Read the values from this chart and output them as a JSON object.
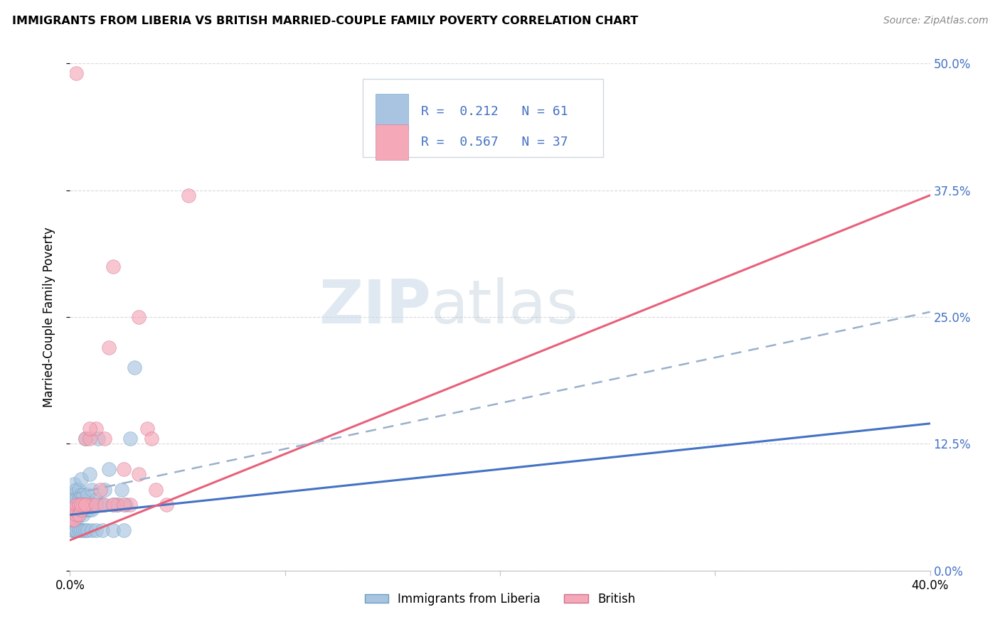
{
  "title": "IMMIGRANTS FROM LIBERIA VS BRITISH MARRIED-COUPLE FAMILY POVERTY CORRELATION CHART",
  "source": "Source: ZipAtlas.com",
  "ylabel": "Married-Couple Family Poverty",
  "legend_label1": "Immigrants from Liberia",
  "legend_label2": "British",
  "r1": 0.212,
  "n1": 61,
  "r2": 0.567,
  "n2": 37,
  "xlim": [
    0.0,
    0.4
  ],
  "ylim": [
    0.0,
    0.5
  ],
  "xticks": [
    0.0,
    0.1,
    0.2,
    0.3,
    0.4
  ],
  "yticks": [
    0.0,
    0.125,
    0.25,
    0.375,
    0.5
  ],
  "ytick_labels_right": [
    "0.0%",
    "12.5%",
    "25.0%",
    "37.5%",
    "50.0%"
  ],
  "xtick_labels": [
    "0.0%",
    "",
    "",
    "",
    "40.0%"
  ],
  "color_blue": "#a8c4e0",
  "color_pink": "#f4a8b8",
  "line_blue": "#4472c4",
  "line_pink": "#e8607a",
  "line_dash": "#9ab0cc",
  "watermark_zip": "ZIP",
  "watermark_atlas": "atlas",
  "blue_x": [
    0.001,
    0.001,
    0.001,
    0.002,
    0.002,
    0.002,
    0.002,
    0.002,
    0.003,
    0.003,
    0.003,
    0.003,
    0.003,
    0.003,
    0.004,
    0.004,
    0.004,
    0.004,
    0.005,
    0.005,
    0.005,
    0.005,
    0.006,
    0.006,
    0.006,
    0.007,
    0.007,
    0.008,
    0.008,
    0.009,
    0.009,
    0.01,
    0.01,
    0.011,
    0.012,
    0.013,
    0.014,
    0.015,
    0.016,
    0.018,
    0.02,
    0.022,
    0.024,
    0.026,
    0.028,
    0.001,
    0.002,
    0.002,
    0.003,
    0.003,
    0.004,
    0.005,
    0.006,
    0.007,
    0.008,
    0.01,
    0.012,
    0.015,
    0.02,
    0.025,
    0.03
  ],
  "blue_y": [
    0.055,
    0.065,
    0.075,
    0.055,
    0.06,
    0.065,
    0.075,
    0.085,
    0.05,
    0.055,
    0.06,
    0.065,
    0.07,
    0.08,
    0.055,
    0.06,
    0.07,
    0.08,
    0.06,
    0.065,
    0.075,
    0.09,
    0.055,
    0.065,
    0.075,
    0.06,
    0.13,
    0.06,
    0.075,
    0.06,
    0.095,
    0.06,
    0.08,
    0.065,
    0.07,
    0.13,
    0.065,
    0.065,
    0.08,
    0.1,
    0.065,
    0.065,
    0.08,
    0.065,
    0.13,
    0.04,
    0.04,
    0.04,
    0.04,
    0.04,
    0.04,
    0.04,
    0.04,
    0.04,
    0.04,
    0.04,
    0.04,
    0.04,
    0.04,
    0.04,
    0.2
  ],
  "pink_x": [
    0.001,
    0.001,
    0.002,
    0.002,
    0.003,
    0.003,
    0.004,
    0.004,
    0.005,
    0.006,
    0.007,
    0.008,
    0.009,
    0.01,
    0.012,
    0.014,
    0.016,
    0.018,
    0.02,
    0.022,
    0.025,
    0.028,
    0.032,
    0.036,
    0.04,
    0.003,
    0.005,
    0.007,
    0.009,
    0.012,
    0.016,
    0.02,
    0.025,
    0.032,
    0.038,
    0.045,
    0.055
  ],
  "pink_y": [
    0.05,
    0.06,
    0.05,
    0.06,
    0.055,
    0.065,
    0.055,
    0.065,
    0.06,
    0.065,
    0.13,
    0.065,
    0.13,
    0.065,
    0.14,
    0.08,
    0.13,
    0.22,
    0.3,
    0.065,
    0.1,
    0.065,
    0.095,
    0.14,
    0.08,
    0.49,
    0.065,
    0.065,
    0.14,
    0.065,
    0.065,
    0.065,
    0.065,
    0.25,
    0.13,
    0.065,
    0.37
  ],
  "blue_trend_x": [
    0.0,
    0.4
  ],
  "blue_trend_y": [
    0.055,
    0.145
  ],
  "pink_trend_x": [
    0.0,
    0.4
  ],
  "pink_trend_y": [
    0.03,
    0.37
  ],
  "dash_trend_x": [
    0.0,
    0.4
  ],
  "dash_trend_y": [
    0.075,
    0.255
  ]
}
